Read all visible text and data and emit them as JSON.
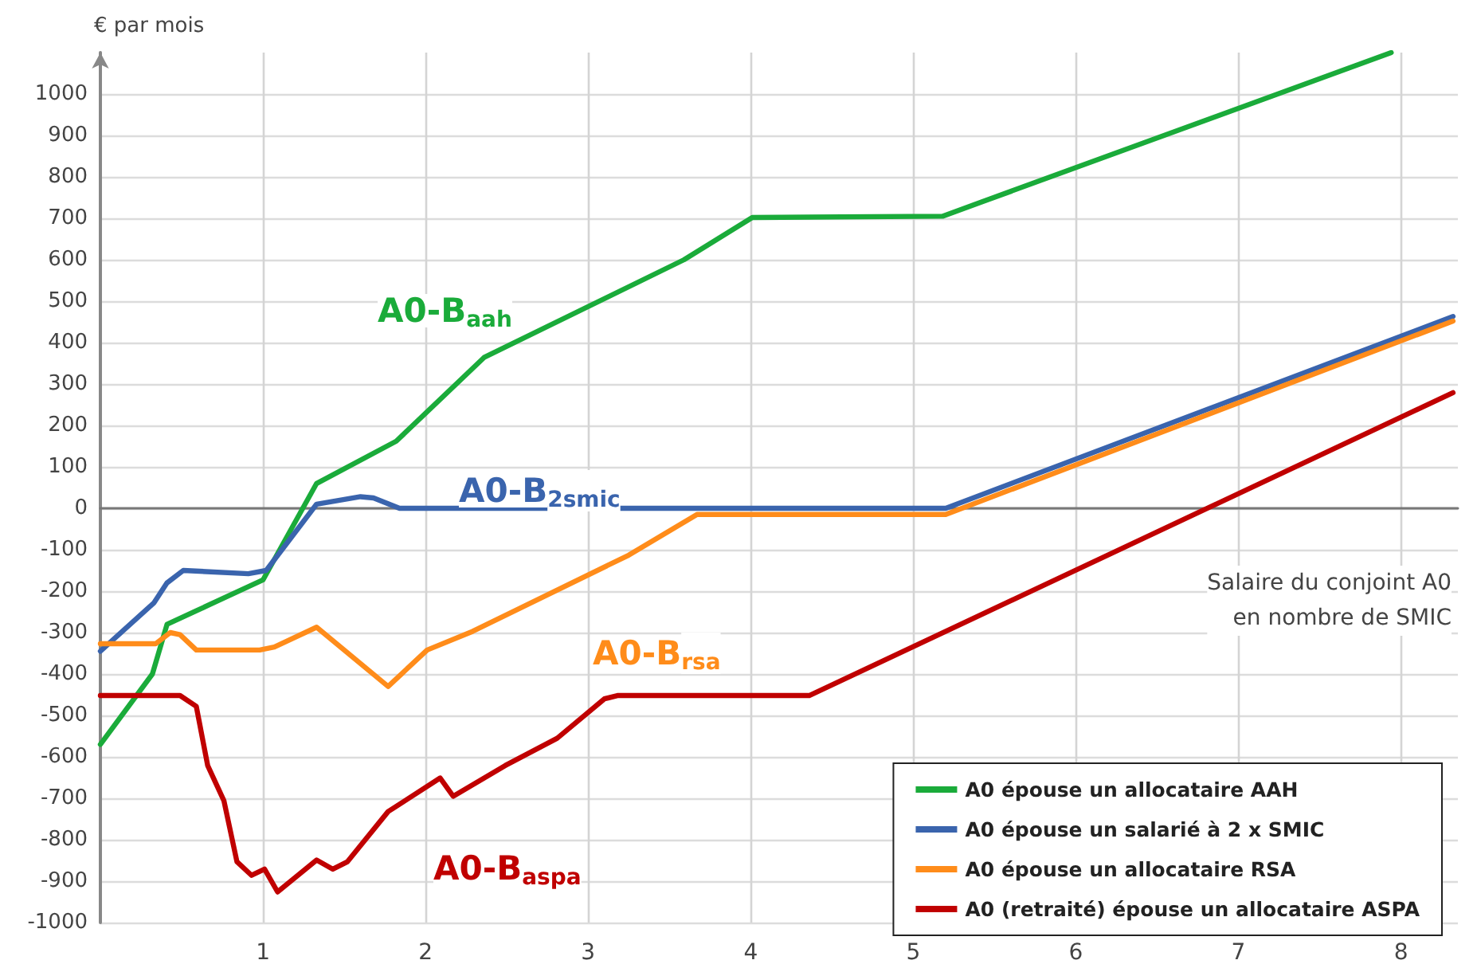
{
  "chart_data": {
    "type": "line",
    "ylabel": "€ par mois",
    "xlabel": "Salaire du conjoint A0\nen nombre de SMIC",
    "xlim": [
      0,
      8.35
    ],
    "xticks": [
      1,
      2,
      3,
      4,
      5,
      6,
      7,
      8
    ],
    "ylim": [
      -1000,
      1100
    ],
    "yticks": [
      -1000,
      -900,
      -800,
      -700,
      -600,
      -500,
      -400,
      -300,
      -200,
      -100,
      0,
      100,
      200,
      300,
      400,
      500,
      600,
      700,
      800,
      900,
      1000
    ],
    "grid": true,
    "legend": "bottom right",
    "marker": "none",
    "line_style": "solid",
    "series": [
      {
        "name": "A0 épouse un allocataire AAH",
        "color": "#1aab3a",
        "x": [
          0,
          0.32,
          0.41,
          1.0,
          1.33,
          1.82,
          2.36,
          3.59,
          4.01,
          5.18,
          7.94
        ],
        "values": [
          -570,
          -400,
          -280,
          -173,
          60,
          162,
          364,
          600,
          702,
          705,
          1100
        ]
      },
      {
        "name": "A0 épouse un salarié à 2 x SMIC",
        "color": "#3a64ad",
        "x": [
          0,
          0.33,
          0.41,
          0.51,
          0.91,
          1.02,
          1.33,
          1.6,
          1.68,
          1.84,
          5.2,
          8.32
        ],
        "values": [
          -345,
          -228,
          -180,
          -150,
          -158,
          -150,
          10,
          28,
          25,
          0,
          0,
          463
        ]
      },
      {
        "name": "A0 épouse un allocataire RSA",
        "color": "#ff8c1a",
        "x": [
          0,
          0.34,
          0.43,
          0.49,
          0.59,
          0.98,
          1.07,
          1.33,
          1.77,
          2.01,
          2.29,
          3.25,
          3.67,
          5.2,
          8.32
        ],
        "values": [
          -327,
          -327,
          -300,
          -305,
          -342,
          -342,
          -335,
          -287,
          -430,
          -342,
          -297,
          -113,
          -15,
          -15,
          452
        ]
      },
      {
        "name": "A0 (retraité) épouse un allocataire ASPA",
        "color": "#c00000",
        "x": [
          0,
          0.49,
          0.59,
          0.66,
          0.76,
          0.84,
          0.93,
          1.01,
          1.09,
          1.33,
          1.43,
          1.52,
          1.77,
          2.09,
          2.17,
          2.49,
          2.81,
          3.1,
          3.18,
          4.36,
          8.32
        ],
        "values": [
          -452,
          -452,
          -478,
          -621,
          -706,
          -853,
          -886,
          -871,
          -926,
          -849,
          -871,
          -853,
          -732,
          -651,
          -695,
          -621,
          -555,
          -460,
          -452,
          -452,
          279
        ]
      }
    ],
    "annotations": [
      "A0-B$_{aah}$",
      "A0-B$_{2smic}$",
      "A0-B$_{rsa}$",
      "A0-B$_{aspa}$"
    ]
  }
}
